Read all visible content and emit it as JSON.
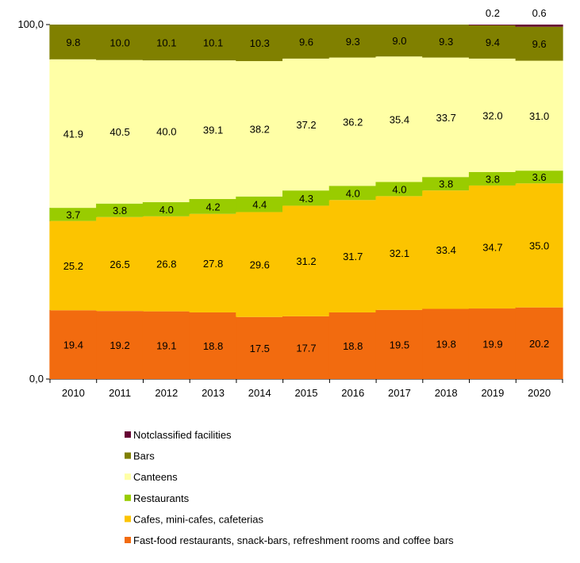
{
  "chart_data": {
    "type": "bar",
    "stacked": true,
    "categories": [
      "2010",
      "2011",
      "2012",
      "2013",
      "2014",
      "2015",
      "2016",
      "2017",
      "2018",
      "2019",
      "2020"
    ],
    "ylim": [
      0,
      100
    ],
    "y_tick_labels": [
      "0,0",
      "100,0"
    ],
    "series": [
      {
        "name": "Fast-food restaurants, snack-bars, refreshment rooms and coffee bars",
        "color": "#f26b0f",
        "values": [
          19.4,
          19.2,
          19.1,
          18.8,
          17.5,
          17.7,
          18.8,
          19.5,
          19.8,
          19.9,
          20.2
        ]
      },
      {
        "name": "Cafes, mini-cafes, cafeterias",
        "color": "#fcc400",
        "values": [
          25.2,
          26.5,
          26.8,
          27.8,
          29.6,
          31.2,
          31.7,
          32.1,
          33.4,
          34.7,
          35.0
        ]
      },
      {
        "name": "Restaurants",
        "color": "#99cc00",
        "values": [
          3.7,
          3.8,
          4.0,
          4.2,
          4.4,
          4.3,
          4.0,
          4.0,
          3.8,
          3.8,
          3.6
        ]
      },
      {
        "name": "Canteens",
        "color": "#ffffa6",
        "values": [
          41.9,
          40.5,
          40.0,
          39.1,
          38.2,
          37.2,
          36.2,
          35.4,
          33.7,
          32.0,
          31.0
        ]
      },
      {
        "name": "Bars",
        "color": "#808000",
        "values": [
          9.8,
          10.0,
          10.1,
          10.1,
          10.3,
          9.6,
          9.3,
          9.0,
          9.3,
          9.4,
          9.6
        ]
      },
      {
        "name": "Notclassified facilities",
        "color": "#660033",
        "values": [
          null,
          null,
          null,
          null,
          null,
          null,
          null,
          null,
          null,
          0.2,
          0.6
        ]
      }
    ],
    "legend_position": "bottom",
    "grid": false
  }
}
